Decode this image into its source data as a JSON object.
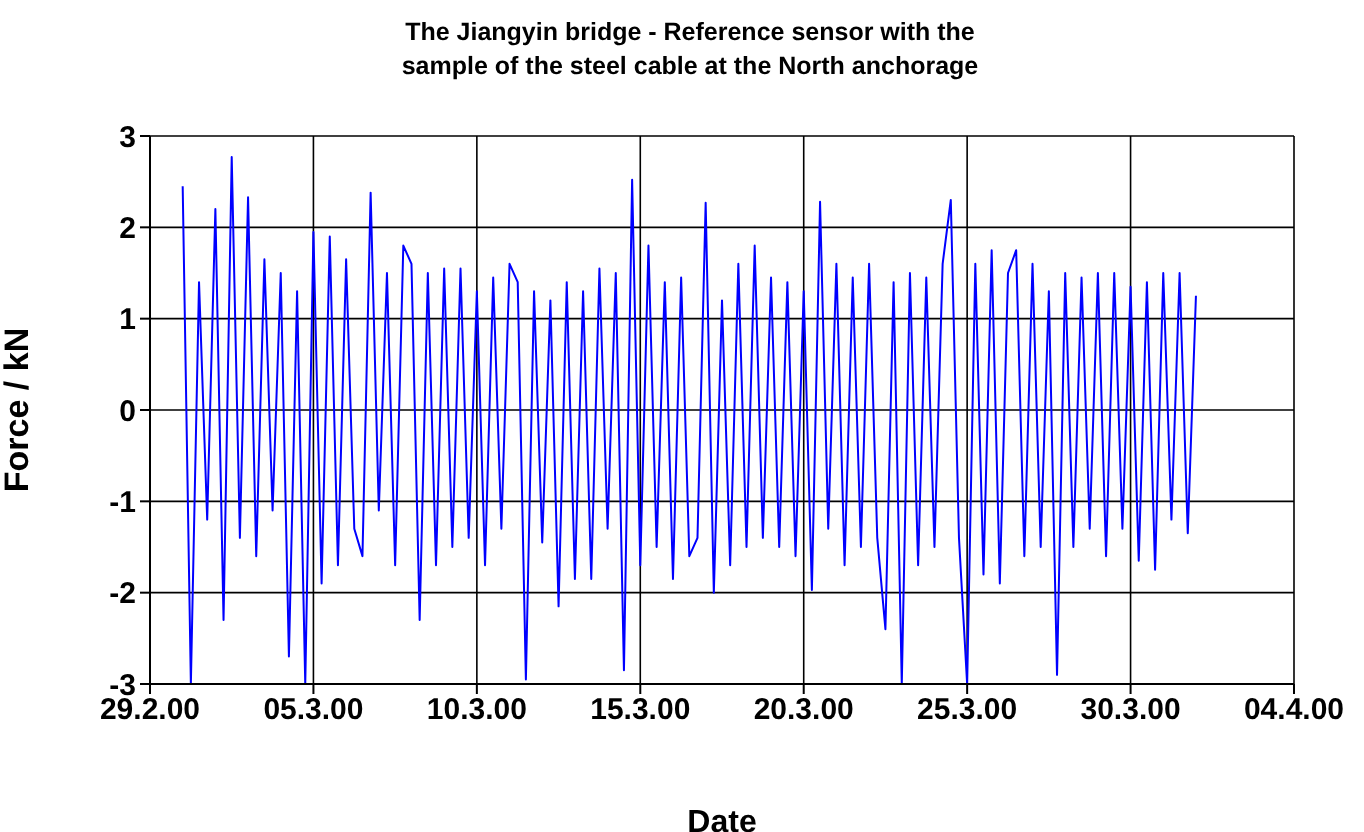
{
  "chart_data": {
    "type": "line",
    "title": "The Jiangyin bridge - Reference sensor with the sample of the steel cable at the North anchorage",
    "xlabel": "Date",
    "ylabel": "Force / kN",
    "x": [
      "2000-03-01T00:00",
      "2000-03-01T06:00",
      "2000-03-01T12:00",
      "2000-03-01T18:00",
      "2000-03-02T00:00",
      "2000-03-02T06:00",
      "2000-03-02T12:00",
      "2000-03-02T18:00",
      "2000-03-03T00:00",
      "2000-03-03T06:00",
      "2000-03-03T12:00",
      "2000-03-03T18:00",
      "2000-03-04T00:00",
      "2000-03-04T06:00",
      "2000-03-04T12:00",
      "2000-03-04T18:00",
      "2000-03-05T00:00",
      "2000-03-05T06:00",
      "2000-03-05T12:00",
      "2000-03-05T18:00",
      "2000-03-06T00:00",
      "2000-03-06T06:00",
      "2000-03-06T12:00",
      "2000-03-06T18:00",
      "2000-03-07T00:00",
      "2000-03-07T06:00",
      "2000-03-07T12:00",
      "2000-03-07T18:00",
      "2000-03-08T00:00",
      "2000-03-08T06:00",
      "2000-03-08T12:00",
      "2000-03-08T18:00",
      "2000-03-09T00:00",
      "2000-03-09T06:00",
      "2000-03-09T12:00",
      "2000-03-09T18:00",
      "2000-03-10T00:00",
      "2000-03-10T06:00",
      "2000-03-10T12:00",
      "2000-03-10T18:00",
      "2000-03-11T00:00",
      "2000-03-11T06:00",
      "2000-03-11T12:00",
      "2000-03-11T18:00",
      "2000-03-12T00:00",
      "2000-03-12T06:00",
      "2000-03-12T12:00",
      "2000-03-12T18:00",
      "2000-03-13T00:00",
      "2000-03-13T06:00",
      "2000-03-13T12:00",
      "2000-03-13T18:00",
      "2000-03-14T00:00",
      "2000-03-14T06:00",
      "2000-03-14T12:00",
      "2000-03-14T18:00",
      "2000-03-15T00:00",
      "2000-03-15T06:00",
      "2000-03-15T12:00",
      "2000-03-15T18:00",
      "2000-03-16T00:00",
      "2000-03-16T06:00",
      "2000-03-16T12:00",
      "2000-03-16T18:00",
      "2000-03-17T00:00",
      "2000-03-17T06:00",
      "2000-03-17T12:00",
      "2000-03-17T18:00",
      "2000-03-18T00:00",
      "2000-03-18T06:00",
      "2000-03-18T12:00",
      "2000-03-18T18:00",
      "2000-03-19T00:00",
      "2000-03-19T06:00",
      "2000-03-19T12:00",
      "2000-03-19T18:00",
      "2000-03-20T00:00",
      "2000-03-20T06:00",
      "2000-03-20T12:00",
      "2000-03-20T18:00",
      "2000-03-21T00:00",
      "2000-03-21T06:00",
      "2000-03-21T12:00",
      "2000-03-21T18:00",
      "2000-03-22T00:00",
      "2000-03-22T06:00",
      "2000-03-22T12:00",
      "2000-03-22T18:00",
      "2000-03-23T00:00",
      "2000-03-23T06:00",
      "2000-03-23T12:00",
      "2000-03-23T18:00",
      "2000-03-24T00:00",
      "2000-03-24T06:00",
      "2000-03-24T12:00",
      "2000-03-24T18:00",
      "2000-03-25T00:00",
      "2000-03-25T06:00",
      "2000-03-25T12:00",
      "2000-03-25T18:00",
      "2000-03-26T00:00",
      "2000-03-26T06:00",
      "2000-03-26T12:00",
      "2000-03-26T18:00",
      "2000-03-27T00:00",
      "2000-03-27T06:00",
      "2000-03-27T12:00",
      "2000-03-27T18:00",
      "2000-03-28T00:00",
      "2000-03-28T06:00",
      "2000-03-28T12:00",
      "2000-03-28T18:00",
      "2000-03-29T00:00",
      "2000-03-29T06:00",
      "2000-03-29T12:00",
      "2000-03-29T18:00",
      "2000-03-30T00:00",
      "2000-03-30T06:00",
      "2000-03-30T12:00",
      "2000-03-30T18:00",
      "2000-03-31T00:00",
      "2000-03-31T06:00",
      "2000-03-31T12:00",
      "2000-03-31T18:00",
      "2000-04-01T00:00"
    ],
    "series": [
      {
        "color": "#0000ff",
        "values": [
          2.45,
          -3,
          1.4,
          -1.2,
          2.2,
          -2.3,
          2.77,
          -1.4,
          2.33,
          -1.6,
          1.65,
          -1.1,
          1.5,
          -2.7,
          1.3,
          -3,
          1.95,
          -1.9,
          1.9,
          -1.7,
          1.65,
          -1.3,
          -1.6,
          2.38,
          -1.1,
          1.5,
          -1.7,
          1.8,
          1.6,
          -2.3,
          1.5,
          -1.7,
          1.55,
          -1.5,
          1.55,
          -1.4,
          1.3,
          -1.7,
          1.45,
          -1.3,
          1.6,
          1.4,
          -2.95,
          1.3,
          -1.45,
          1.2,
          -2.15,
          1.4,
          -1.85,
          1.3,
          -1.85,
          1.55,
          -1.3,
          1.5,
          -2.85,
          2.52,
          -1.7,
          1.8,
          -1.5,
          1.4,
          -1.85,
          1.45,
          -1.6,
          -1.4,
          2.27,
          -2,
          1.2,
          -1.7,
          1.6,
          -1.5,
          1.8,
          -1.4,
          1.45,
          -1.5,
          1.4,
          -1.6,
          1.3,
          -1.97,
          2.28,
          -1.3,
          1.6,
          -1.7,
          1.45,
          -1.5,
          1.6,
          -1.4,
          -2.4,
          1.4,
          -3,
          1.5,
          -1.7,
          1.45,
          -1.5,
          1.6,
          2.3,
          -1.4,
          -3,
          1.6,
          -1.8,
          1.75,
          -1.9,
          1.5,
          1.75,
          -1.6,
          1.6,
          -1.5,
          1.3,
          -2.9,
          1.5,
          -1.5,
          1.45,
          -1.3,
          1.5,
          -1.6,
          1.5,
          -1.3,
          1.35,
          -1.65,
          1.4,
          -1.75,
          1.5,
          -1.2,
          1.5,
          -1.35,
          1.25
        ]
      }
    ],
    "xlim": [
      "2000-02-29",
      "2000-04-04"
    ],
    "xticks": [
      {
        "value": "2000-02-29",
        "label": "29.2.00"
      },
      {
        "value": "2000-03-05",
        "label": "05.3.00"
      },
      {
        "value": "2000-03-10",
        "label": "10.3.00"
      },
      {
        "value": "2000-03-15",
        "label": "15.3.00"
      },
      {
        "value": "2000-03-20",
        "label": "20.3.00"
      },
      {
        "value": "2000-03-25",
        "label": "25.3.00"
      },
      {
        "value": "2000-03-30",
        "label": "30.3.00"
      },
      {
        "value": "2000-04-04",
        "label": "04.4.00"
      }
    ],
    "ylim": [
      -3,
      3
    ],
    "yticks": [
      -3,
      -2,
      -1,
      0,
      1,
      2,
      3
    ],
    "grid": true
  }
}
